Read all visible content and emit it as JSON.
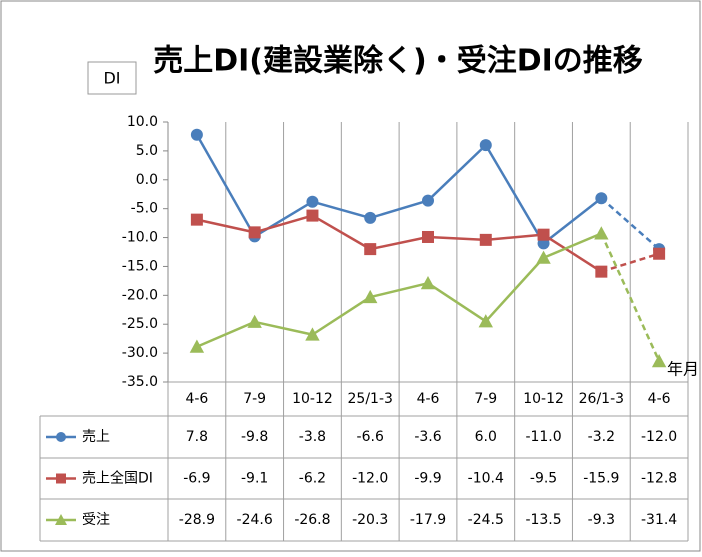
{
  "chart_data": {
    "type": "line",
    "title": "売上DI(建設業除く)・受注DIの推移",
    "ylabel": "DI",
    "xlabel": "年月",
    "categories": [
      "4-6",
      "7-9",
      "10-12",
      "25/1-3",
      "4-6",
      "7-9",
      "10-12",
      "26/1-3",
      "4-6"
    ],
    "series": [
      {
        "name": "売上",
        "color": "#4a7ebb",
        "marker": "circle",
        "values": [
          7.8,
          -9.8,
          -3.8,
          -6.6,
          -3.6,
          6.0,
          -11.0,
          -3.2,
          -12.0
        ],
        "value_labels": [
          "7.8",
          "-9.8",
          "-3.8",
          "-6.6",
          "-3.6",
          "6.0",
          "-11.0",
          "-3.2",
          "-12.0"
        ]
      },
      {
        "name": "売上全国DI",
        "color": "#c0504d",
        "marker": "square",
        "values": [
          -6.9,
          -9.1,
          -6.2,
          -12.0,
          -9.9,
          -10.4,
          -9.5,
          -15.9,
          -12.8
        ],
        "value_labels": [
          "-6.9",
          "-9.1",
          "-6.2",
          "-12.0",
          "-9.9",
          "-10.4",
          "-9.5",
          "-15.9",
          "-12.8"
        ]
      },
      {
        "name": "受注",
        "color": "#9bbb59",
        "marker": "triangle",
        "values": [
          -28.9,
          -24.6,
          -26.8,
          -20.3,
          -17.9,
          -24.5,
          -13.5,
          -9.3,
          -31.4
        ],
        "value_labels": [
          "-28.9",
          "-24.6",
          "-26.8",
          "-20.3",
          "-17.9",
          "-24.5",
          "-13.5",
          "-9.3",
          "-31.4"
        ]
      }
    ],
    "dashed_from": 7,
    "ylim": [
      -35,
      10
    ],
    "yticks": [
      {
        "value": 10,
        "label": "10.0"
      },
      {
        "value": 5,
        "label": "5.0"
      },
      {
        "value": 0,
        "label": "0.0"
      },
      {
        "value": -5,
        "label": "-5.0"
      },
      {
        "value": -10,
        "label": "-10.0"
      },
      {
        "value": -15,
        "label": "-15.0"
      },
      {
        "value": -20,
        "label": "-20.0"
      },
      {
        "value": -25,
        "label": "-25.0"
      },
      {
        "value": -30,
        "label": "-30.0"
      },
      {
        "value": -35,
        "label": "-35.0"
      }
    ]
  }
}
